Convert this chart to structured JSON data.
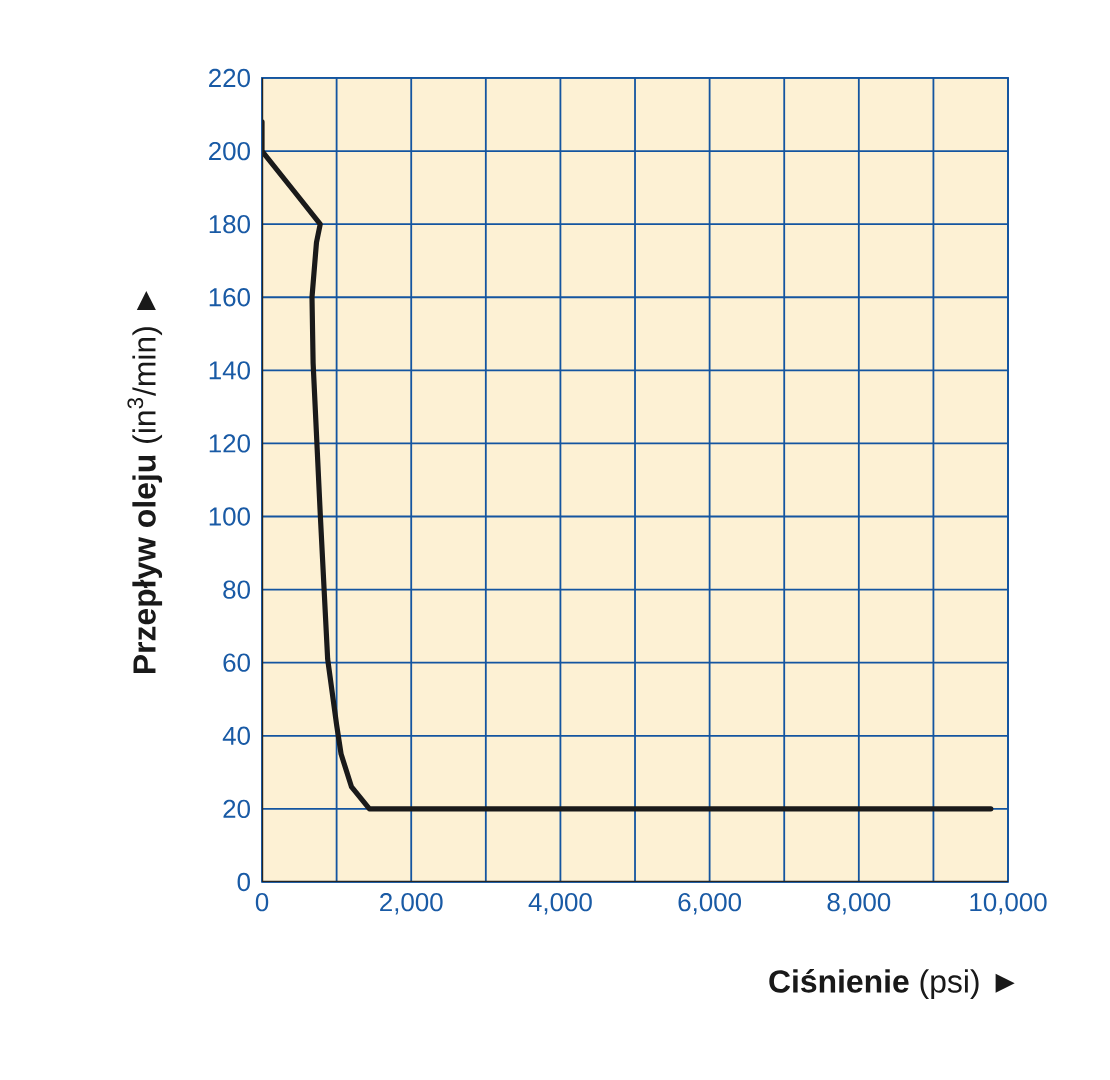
{
  "chart_data": {
    "type": "line",
    "xlabel": "**Ciśnienie** (psi)  ►",
    "ylabel": "**Przepływ oleju** (in$^{3}$/min)  ►",
    "x": [
      0,
      0,
      430,
      780,
      730,
      670,
      685,
      780,
      880,
      1000,
      1060,
      1200,
      1440,
      9770
    ],
    "series": [
      {
        "color": "#1a1a1a",
        "values": [
          208,
          200,
          189,
          180,
          175,
          160,
          142,
          101,
          61,
          43,
          35,
          26,
          20,
          20
        ]
      }
    ],
    "xlim": [
      0,
      10000
    ],
    "ylim": [
      0,
      220
    ],
    "xticks": [
      {
        "value": 0,
        "label": "0"
      },
      {
        "value": 1000,
        "label": null
      },
      {
        "value": 2000,
        "label": "2,000"
      },
      {
        "value": 3000,
        "label": null
      },
      {
        "value": 4000,
        "label": "4,000"
      },
      {
        "value": 5000,
        "label": null
      },
      {
        "value": 6000,
        "label": "6,000"
      },
      {
        "value": 7000,
        "label": null
      },
      {
        "value": 8000,
        "label": "8,000"
      },
      {
        "value": 9000,
        "label": null
      },
      {
        "value": 10000,
        "label": "10,000"
      }
    ],
    "yticks": [
      0,
      20,
      40,
      60,
      80,
      100,
      120,
      140,
      160,
      180,
      200,
      220
    ],
    "grid": true,
    "marker": "none",
    "line_style": "solid"
  }
}
